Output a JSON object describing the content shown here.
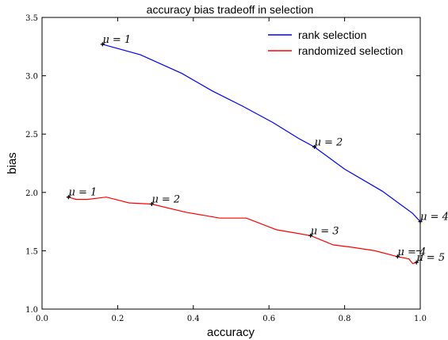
{
  "chart_data": {
    "type": "line",
    "title": "accuracy bias tradeoff in selection",
    "xlabel": "accuracy",
    "ylabel": "bias",
    "xlim": [
      0.0,
      1.0
    ],
    "ylim": [
      1.0,
      3.5
    ],
    "xticks": [
      "0.0",
      "0.2",
      "0.4",
      "0.6",
      "0.8",
      "1.0"
    ],
    "yticks": [
      "1.0",
      "1.5",
      "2.0",
      "2.5",
      "3.0",
      "3.5"
    ],
    "grid": false,
    "legend_position": "top-right",
    "series": [
      {
        "name": "rank selection",
        "color": "#0000ff",
        "points": [
          [
            0.16,
            3.27
          ],
          [
            0.26,
            3.18
          ],
          [
            0.37,
            3.02
          ],
          [
            0.45,
            2.87
          ],
          [
            0.53,
            2.74
          ],
          [
            0.61,
            2.6
          ],
          [
            0.68,
            2.46
          ],
          [
            0.72,
            2.39
          ],
          [
            0.8,
            2.2
          ],
          [
            0.9,
            2.01
          ],
          [
            0.98,
            1.82
          ],
          [
            1.0,
            1.75
          ]
        ],
        "annotations": [
          {
            "label": "μ = 1",
            "x": 0.16,
            "y": 3.27
          },
          {
            "label": "μ = 2",
            "x": 0.72,
            "y": 2.39
          },
          {
            "label": "μ = 4",
            "x": 1.0,
            "y": 1.75
          }
        ]
      },
      {
        "name": "randomized selection",
        "color": "#ff0000",
        "points": [
          [
            0.07,
            1.96
          ],
          [
            0.09,
            1.94
          ],
          [
            0.12,
            1.94
          ],
          [
            0.17,
            1.96
          ],
          [
            0.23,
            1.91
          ],
          [
            0.29,
            1.9
          ],
          [
            0.38,
            1.83
          ],
          [
            0.47,
            1.78
          ],
          [
            0.54,
            1.78
          ],
          [
            0.62,
            1.68
          ],
          [
            0.71,
            1.63
          ],
          [
            0.77,
            1.55
          ],
          [
            0.82,
            1.53
          ],
          [
            0.88,
            1.5
          ],
          [
            0.94,
            1.45
          ],
          [
            0.97,
            1.43
          ],
          [
            0.98,
            1.39
          ],
          [
            0.99,
            1.4
          ]
        ],
        "annotations": [
          {
            "label": "μ = 1",
            "x": 0.07,
            "y": 1.96
          },
          {
            "label": "μ = 2",
            "x": 0.29,
            "y": 1.9
          },
          {
            "label": "μ = 3",
            "x": 0.71,
            "y": 1.63
          },
          {
            "label": "μ = 4",
            "x": 0.94,
            "y": 1.45
          },
          {
            "label": "μ = 5",
            "x": 0.99,
            "y": 1.4
          }
        ]
      }
    ]
  }
}
